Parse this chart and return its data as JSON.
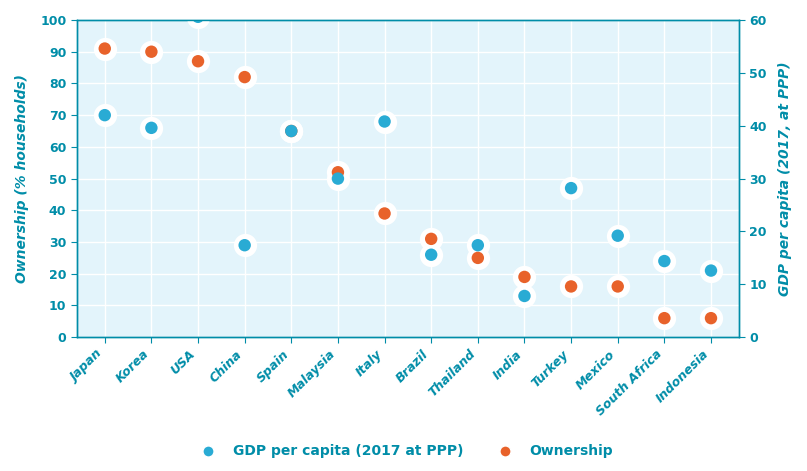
{
  "countries": [
    "Japan",
    "Korea",
    "USA",
    "China",
    "Spain",
    "Malaysia",
    "Italy",
    "Brazil",
    "Thailand",
    "India",
    "Turkey",
    "Mexico",
    "South Africa",
    "Indonesia"
  ],
  "ownership": [
    91,
    90,
    87,
    82,
    65,
    52,
    39,
    31,
    25,
    19,
    16,
    16,
    6,
    6
  ],
  "gdp_left_axis": [
    70,
    66,
    101,
    29,
    65,
    50,
    68,
    26,
    29,
    13,
    47,
    32,
    24,
    21
  ],
  "ownership_color": "#E8622A",
  "gdp_color": "#29ABD4",
  "axis_color": "#008DA8",
  "background_color": "#FFFFFF",
  "plot_bg_color": "#E3F4FB",
  "grid_color": "#FFFFFF",
  "left_ylabel": "Ownership (% households)",
  "right_ylabel": "GDP per capita (2017, at PPP)",
  "legend_gdp": "GDP per capita (2017 at PPP)",
  "legend_ownership": "Ownership",
  "ylim_left": [
    0,
    100
  ],
  "ylim_right": [
    0,
    60
  ],
  "yticks_left": [
    0,
    10,
    20,
    30,
    40,
    50,
    60,
    70,
    80,
    90,
    100
  ],
  "yticks_right": [
    0,
    10,
    20,
    30,
    40,
    50,
    60
  ],
  "marker_size": 80
}
